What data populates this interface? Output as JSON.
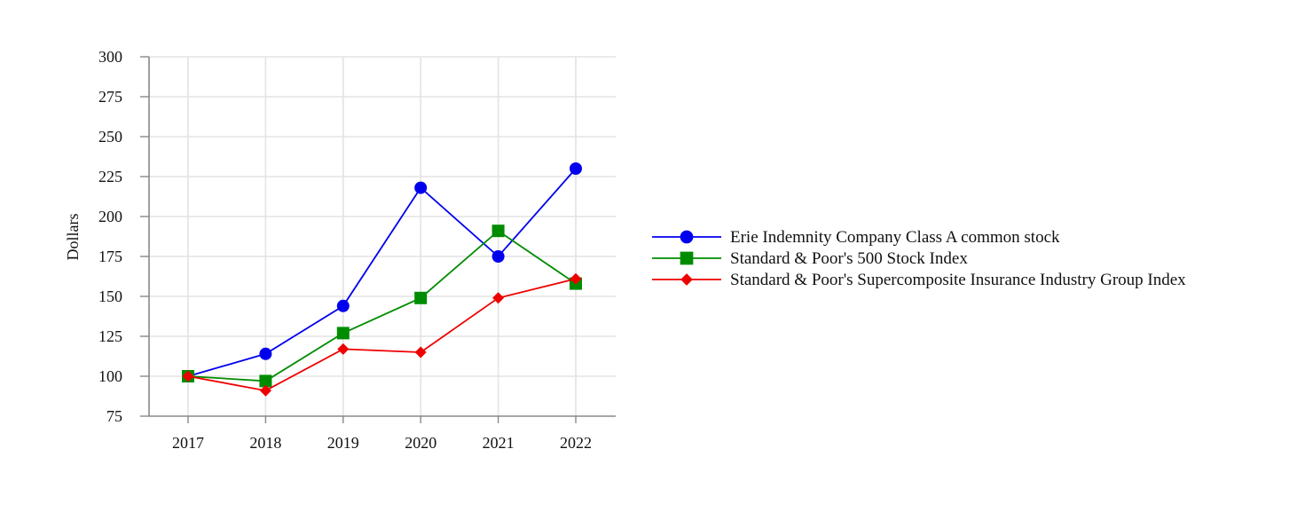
{
  "chart_data": {
    "type": "line",
    "title": "",
    "xlabel": "",
    "ylabel": "Dollars",
    "categories": [
      "2017",
      "2018",
      "2019",
      "2020",
      "2021",
      "2022"
    ],
    "ylim": [
      75,
      300
    ],
    "yticks": [
      75,
      100,
      125,
      150,
      175,
      200,
      225,
      250,
      275,
      300
    ],
    "grid": true,
    "legend_position": "right",
    "series": [
      {
        "name": "Erie Indemnity Company Class A common stock",
        "values": [
          100,
          114,
          144,
          218,
          175,
          230
        ],
        "color": "#0000ee",
        "marker": "circle"
      },
      {
        "name": "Standard & Poor's 500 Stock Index",
        "values": [
          100,
          97,
          127,
          149,
          191,
          158
        ],
        "color": "#008c00",
        "marker": "square"
      },
      {
        "name": "Standard & Poor's Supercomposite Insurance Industry Group Index",
        "values": [
          100,
          91,
          117,
          115,
          149,
          161
        ],
        "color": "#ee0000",
        "marker": "diamond"
      }
    ]
  }
}
